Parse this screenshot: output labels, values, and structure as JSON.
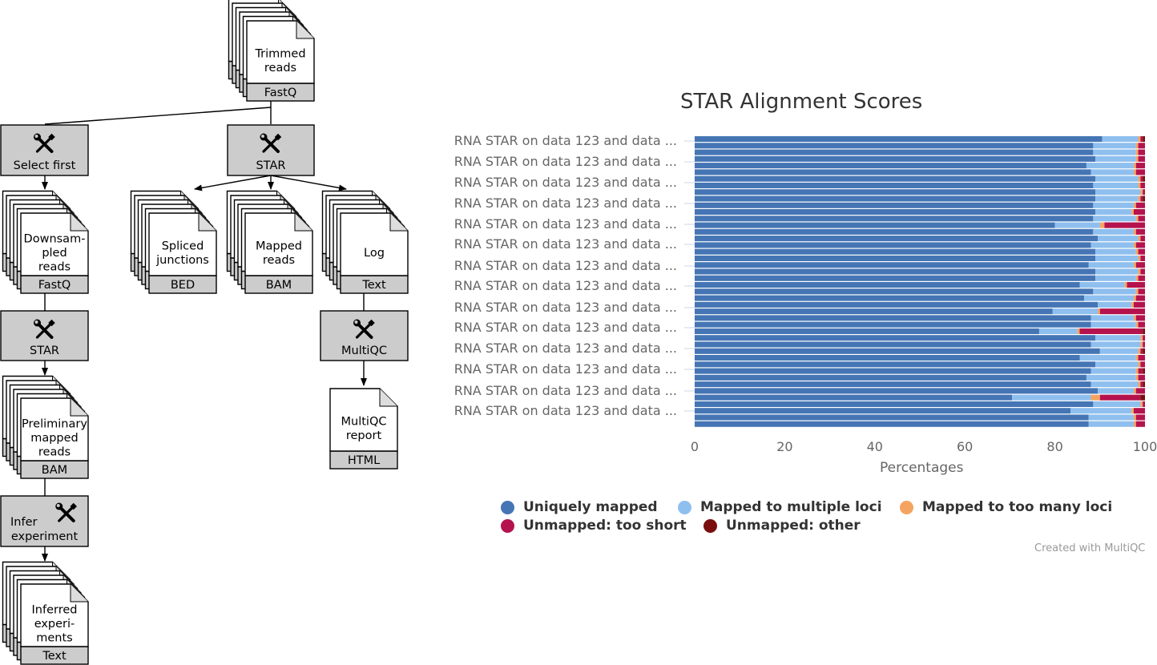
{
  "workflow": {
    "trimmed_reads": {
      "label": [
        "Trimmed",
        "reads"
      ],
      "format": "FastQ"
    },
    "tool_select_first": {
      "label": "Select first"
    },
    "tool_star_main": {
      "label": "STAR"
    },
    "downsampled_reads": {
      "label": [
        "Downsam-",
        "pled",
        "reads"
      ],
      "format": "FastQ"
    },
    "spliced_junctions": {
      "label": [
        "Spliced",
        "junctions"
      ],
      "format": "BED"
    },
    "mapped_reads": {
      "label": [
        "Mapped",
        "reads"
      ],
      "format": "BAM"
    },
    "log": {
      "label": [
        "Log"
      ],
      "format": "Text"
    },
    "tool_star_prelim": {
      "label": "STAR"
    },
    "tool_multiqc": {
      "label": "MultiQC"
    },
    "preliminary_mapped_reads": {
      "label": [
        "Preliminary",
        "mapped",
        "reads"
      ],
      "format": "BAM"
    },
    "multiqc_report": {
      "label": [
        "MultiQC",
        "report"
      ],
      "format": "HTML"
    },
    "tool_infer_experiment": {
      "label": [
        "Infer",
        "experiment"
      ]
    },
    "inferred_experiments": {
      "label": [
        "Inferred",
        "experi-",
        "ments"
      ],
      "format": "Text"
    }
  },
  "chart_data": {
    "type": "bar",
    "orientation": "horizontal",
    "stacked": true,
    "title": "STAR Alignment Scores",
    "xlabel": "Percentages",
    "ylabel": "",
    "xlim": [
      0,
      100
    ],
    "xticks": [
      "0",
      "20",
      "40",
      "60",
      "80",
      "100"
    ],
    "visible_category_labels": [
      "RNA STAR on data 123 and data ...",
      "RNA STAR on data 123 and data ...",
      "RNA STAR on data 123 and data ...",
      "RNA STAR on data 123 and data ...",
      "RNA STAR on data 123 and data ...",
      "RNA STAR on data 123 and data ...",
      "RNA STAR on data 123 and data ...",
      "RNA STAR on data 123 and data ...",
      "RNA STAR on data 123 and data ...",
      "RNA STAR on data 123 and data ...",
      "RNA STAR on data 123 and data ...",
      "RNA STAR on data 123 and data ...",
      "RNA STAR on data 123 and data ...",
      "RNA STAR on data 123 and data ..."
    ],
    "series": [
      {
        "name": "Uniquely mapped",
        "color": "#4575b4",
        "values": [
          90.5,
          88.5,
          88.5,
          89,
          87,
          88,
          89,
          88.5,
          89,
          89,
          88.5,
          89,
          88.5,
          80,
          88.5,
          89.5,
          88,
          89,
          89,
          87.5,
          89,
          89,
          85.5,
          88.5,
          86.5,
          89.5,
          79.5,
          88,
          88,
          76.5,
          89,
          88,
          90,
          85.5,
          89,
          88,
          87,
          88,
          89.5,
          70.5,
          88.5,
          83.5,
          87.5,
          87.5
        ]
      },
      {
        "name": "Mapped to multiple loci",
        "color": "#8fbfee",
        "values": [
          8,
          9.5,
          9.5,
          9,
          10.5,
          9.5,
          9.5,
          10,
          10,
          9.5,
          9,
          8,
          9.5,
          10,
          9,
          9,
          9.5,
          9,
          9.5,
          10,
          9.5,
          9,
          10,
          9.5,
          11,
          7.5,
          10,
          9.5,
          10,
          8.5,
          10,
          11,
          8.5,
          12.5,
          9.5,
          10,
          11,
          10.5,
          8,
          17.5,
          10.5,
          13.5,
          10,
          10
        ]
      },
      {
        "name": "Mapped to too many loci",
        "color": "#f4a460",
        "values": [
          0.5,
          0.5,
          0.5,
          0.5,
          0.5,
          0.5,
          0.5,
          0.5,
          0.5,
          0.5,
          0.5,
          0.5,
          0.5,
          1,
          0.5,
          0.5,
          0.5,
          0.5,
          0.5,
          0.5,
          0.5,
          0.5,
          0.5,
          0.5,
          0.5,
          0.5,
          0.5,
          0.5,
          0.5,
          0.5,
          0.5,
          0.5,
          0.5,
          0.5,
          0.5,
          0.5,
          0.5,
          0.5,
          0.5,
          2,
          0.5,
          0.5,
          0.5,
          0.5
        ]
      },
      {
        "name": "Unmapped: too short",
        "color": "#b5134d",
        "values": [
          0.5,
          1.5,
          1.5,
          1.5,
          2,
          2,
          0.5,
          1,
          0.5,
          0.5,
          2,
          2.5,
          1.5,
          9,
          2,
          1,
          2,
          1.5,
          1,
          2,
          1,
          1.5,
          4,
          1.5,
          2,
          2.5,
          10,
          2,
          1.5,
          14,
          0.5,
          0.5,
          0.5,
          1.5,
          1,
          1,
          1.5,
          0.5,
          2,
          9,
          0.5,
          2.5,
          2,
          2
        ]
      },
      {
        "name": "Unmapped: other",
        "color": "#7a0e0e",
        "values": [
          0.5,
          0,
          0,
          0,
          0,
          0,
          0.5,
          0,
          0,
          0.5,
          0,
          0,
          0,
          0,
          0,
          0,
          0,
          0,
          0,
          0,
          0,
          0.5,
          0,
          0,
          0,
          0,
          0,
          0,
          0,
          0.5,
          0,
          0,
          0.5,
          0,
          0,
          0.5,
          0,
          0.5,
          0.5,
          1,
          0.5,
          0,
          0,
          0
        ]
      }
    ],
    "legend_position": "bottom",
    "grid": false
  },
  "credits": "Created with MultiQC"
}
